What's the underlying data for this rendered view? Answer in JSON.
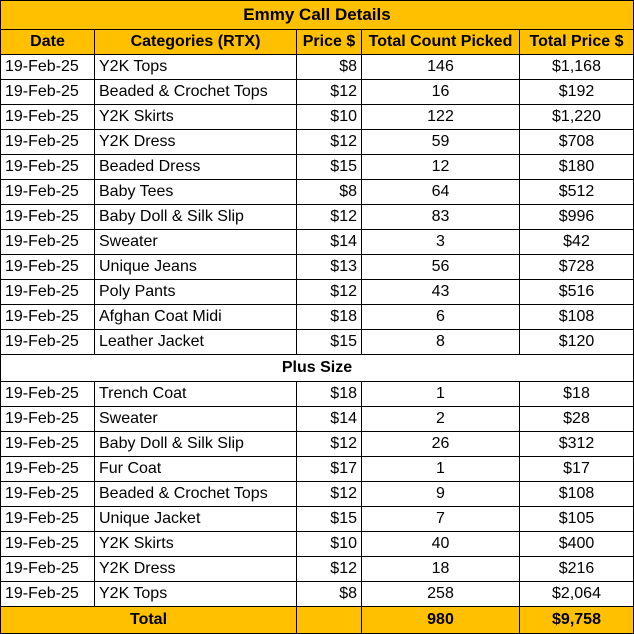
{
  "title": "Emmy Call Details",
  "headers": [
    "Date",
    "Categories (RTX)",
    "Price $",
    "Total Count Picked",
    "Total Price $"
  ],
  "rows": [
    [
      "19-Feb-25",
      "Y2K Tops",
      "$8",
      "146",
      "$1,168"
    ],
    [
      "19-Feb-25",
      "Beaded & Crochet Tops",
      "$12",
      "16",
      "$192"
    ],
    [
      "19-Feb-25",
      "Y2K Skirts",
      "$10",
      "122",
      "$1,220"
    ],
    [
      "19-Feb-25",
      "Y2K Dress",
      "$12",
      "59",
      "$708"
    ],
    [
      "19-Feb-25",
      "Beaded Dress",
      "$15",
      "12",
      "$180"
    ],
    [
      "19-Feb-25",
      "Baby Tees",
      "$8",
      "64",
      "$512"
    ],
    [
      "19-Feb-25",
      "Baby Doll & Silk Slip",
      "$12",
      "83",
      "$996"
    ],
    [
      "19-Feb-25",
      "Sweater",
      "$14",
      "3",
      "$42"
    ],
    [
      "19-Feb-25",
      "Unique Jeans",
      "$13",
      "56",
      "$728"
    ],
    [
      "19-Feb-25",
      "Poly Pants",
      "$12",
      "43",
      "$516"
    ],
    [
      "19-Feb-25",
      "Afghan Coat Midi",
      "$18",
      "6",
      "$108"
    ],
    [
      "19-Feb-25",
      "Leather Jacket",
      "$15",
      "8",
      "$120"
    ]
  ],
  "plus_size": {
    "label": "Plus Size",
    "rows": [
      [
        "19-Feb-25",
        "Trench Coat",
        "$18",
        "1",
        "$18"
      ],
      [
        "19-Feb-25",
        "Sweater",
        "$14",
        "2",
        "$28"
      ],
      [
        "19-Feb-25",
        "Baby Doll & Silk Slip",
        "$12",
        "26",
        "$312"
      ],
      [
        "19-Feb-25",
        "Fur Coat",
        "$17",
        "1",
        "$17"
      ],
      [
        "19-Feb-25",
        "Beaded & Crochet Tops",
        "$12",
        "9",
        "$108"
      ],
      [
        "19-Feb-25",
        "Unique Jacket",
        "$15",
        "7",
        "$105"
      ],
      [
        "19-Feb-25",
        "Y2K Skirts",
        "$10",
        "40",
        "$400"
      ],
      [
        "19-Feb-25",
        "Y2K Dress",
        "$12",
        "18",
        "$216"
      ],
      [
        "19-Feb-25",
        "Y2K Tops",
        "$8",
        "258",
        "$2,064"
      ]
    ]
  },
  "total": {
    "label": "Total",
    "count": "980",
    "price": "$9,758"
  }
}
